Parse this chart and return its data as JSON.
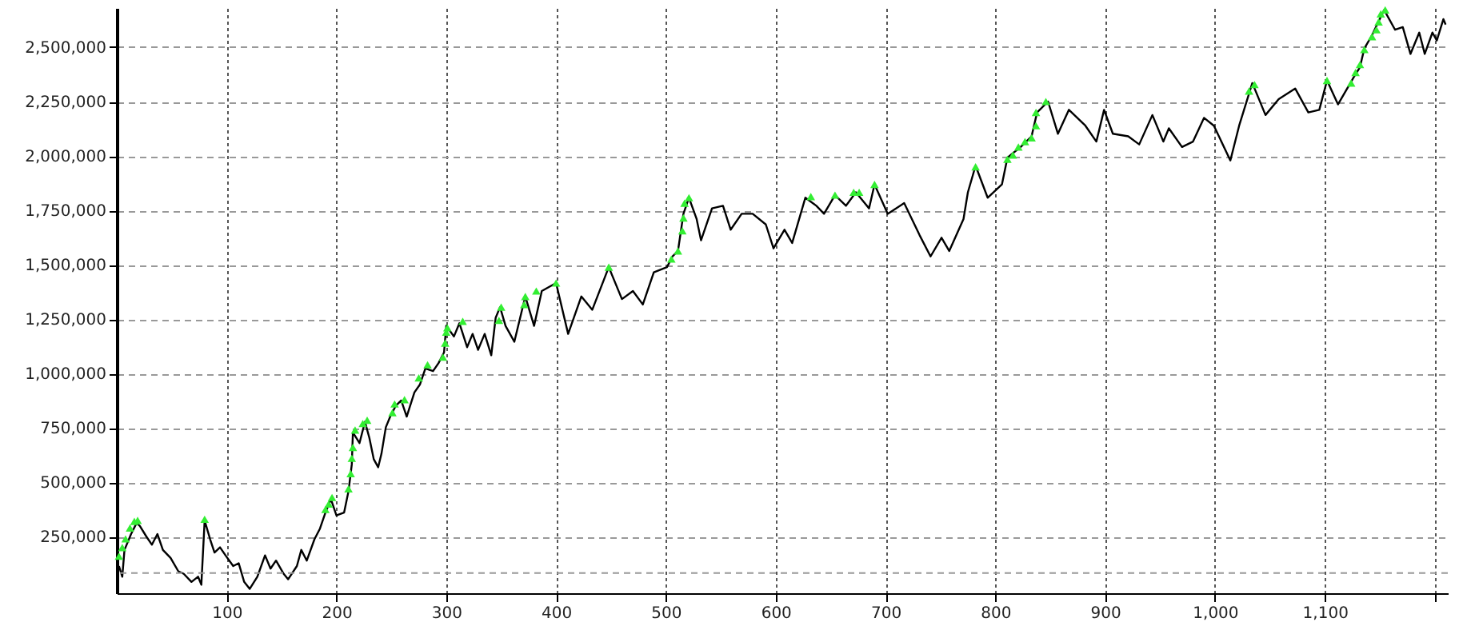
{
  "chart_data": {
    "type": "line",
    "xlim": [
      0,
      1212
    ],
    "ylim": [
      -10000,
      2680000
    ],
    "grid": true,
    "xticks": [
      100,
      200,
      300,
      400,
      500,
      600,
      700,
      800,
      900,
      {
        "value": 1000,
        "label": "1,000"
      },
      {
        "value": 1100,
        "label": "1,100"
      },
      {
        "value": 1200,
        "label": null
      }
    ],
    "ref_lines": [
      {
        "axis": "y",
        "value": 83000,
        "color": "#999999",
        "line_style": "dashed"
      }
    ],
    "yticks": [
      {
        "value": 250000,
        "label": "250,000"
      },
      {
        "value": 500000,
        "label": "500,000"
      },
      {
        "value": 750000,
        "label": "750,000"
      },
      {
        "value": 1000000,
        "label": "1,000,000"
      },
      {
        "value": 1250000,
        "label": "1,250,000"
      },
      {
        "value": 1500000,
        "label": "1,500,000"
      },
      {
        "value": 1750000,
        "label": "1,750,000"
      },
      {
        "value": 2000000,
        "label": "2,000,000"
      },
      {
        "value": 2250000,
        "label": "2,250,000"
      },
      {
        "value": 2500000,
        "label": "2,500,000"
      }
    ],
    "series": [
      {
        "type": "line",
        "color": "#000000",
        "marker": "none",
        "x": [
          2,
          5,
          7,
          13,
          18,
          21,
          27,
          32,
          37,
          42,
          49,
          56,
          61,
          68,
          74,
          77,
          80,
          85,
          89,
          94,
          99,
          106,
          111,
          116,
          121,
          128,
          135,
          140,
          145,
          152,
          156,
          164,
          168,
          173,
          180,
          185,
          190,
          195,
          200,
          207,
          211,
          214,
          215,
          221,
          226,
          230,
          234,
          238,
          241,
          245,
          249,
          254,
          259,
          264,
          271,
          276,
          281,
          288,
          293,
          298,
          300,
          307,
          312,
          319,
          324,
          329,
          335,
          341,
          345,
          349,
          354,
          362,
          372,
          380,
          387,
          400,
          411,
          423,
          433,
          448,
          460,
          470,
          479,
          489,
          501,
          506,
          511,
          516,
          521,
          528,
          532,
          542,
          552,
          559,
          569,
          579,
          591,
          598,
          608,
          615,
          627,
          637,
          644,
          654,
          664,
          673,
          685,
          690,
          702,
          717,
          731,
          741,
          751,
          758,
          771,
          775,
          782,
          793,
          806,
          811,
          823,
          833,
          838,
          848,
          857,
          867,
          882,
          892,
          899,
          907,
          921,
          931,
          943,
          953,
          958,
          970,
          980,
          990,
          999,
          1014,
          1022,
          1034,
          1046,
          1058,
          1073,
          1085,
          1095,
          1102,
          1112,
          1126,
          1132,
          1136,
          1143,
          1154,
          1164,
          1171,
          1178,
          1186,
          1191,
          1198,
          1202,
          1208,
          1210
        ],
        "values": [
          115000,
          66000,
          189000,
          262000,
          312000,
          299000,
          250000,
          213000,
          262000,
          189000,
          152000,
          91000,
          79000,
          42000,
          66000,
          29000,
          324000,
          238000,
          177000,
          201000,
          164000,
          115000,
          128000,
          42000,
          10000,
          66000,
          164000,
          103000,
          140000,
          79000,
          54000,
          115000,
          189000,
          140000,
          238000,
          287000,
          361000,
          422000,
          348000,
          361000,
          459000,
          582000,
          729000,
          680000,
          778000,
          704000,
          606000,
          569000,
          631000,
          753000,
          802000,
          851000,
          876000,
          802000,
          913000,
          949000,
          1023000,
          1011000,
          1048000,
          1097000,
          1219000,
          1170000,
          1231000,
          1121000,
          1182000,
          1109000,
          1182000,
          1084000,
          1256000,
          1305000,
          1219000,
          1146000,
          1354000,
          1219000,
          1379000,
          1416000,
          1182000,
          1354000,
          1293000,
          1489000,
          1342000,
          1379000,
          1317000,
          1465000,
          1489000,
          1538000,
          1563000,
          1734000,
          1808000,
          1710000,
          1612000,
          1759000,
          1771000,
          1661000,
          1734000,
          1734000,
          1685000,
          1575000,
          1661000,
          1600000,
          1808000,
          1771000,
          1734000,
          1820000,
          1771000,
          1833000,
          1759000,
          1869000,
          1734000,
          1783000,
          1636000,
          1538000,
          1624000,
          1563000,
          1710000,
          1833000,
          1955000,
          1808000,
          1869000,
          1992000,
          2041000,
          2090000,
          2200000,
          2250000,
          2102000,
          2212000,
          2139000,
          2066000,
          2212000,
          2102000,
          2090000,
          2053000,
          2188000,
          2066000,
          2127000,
          2041000,
          2066000,
          2175000,
          2139000,
          1979000,
          2139000,
          2335000,
          2188000,
          2261000,
          2310000,
          2200000,
          2212000,
          2347000,
          2237000,
          2359000,
          2408000,
          2494000,
          2555000,
          2671000,
          2580000,
          2592000,
          2469000,
          2567000,
          2469000,
          2567000,
          2531000,
          2629000,
          2604000
        ]
      },
      {
        "type": "scatter",
        "color": "#33ee33",
        "marker": "triangle",
        "x": [
          2,
          5,
          8,
          12,
          16,
          19,
          80,
          190,
          193,
          196,
          211,
          213,
          214,
          215,
          217,
          224,
          228,
          251,
          253,
          262,
          275,
          283,
          297,
          299,
          300,
          301,
          315,
          348,
          350,
          371,
          372,
          382,
          400,
          448,
          505,
          511,
          515,
          516,
          517,
          521,
          632,
          654,
          671,
          676,
          690,
          782,
          811,
          816,
          821,
          827,
          833,
          837,
          837,
          846,
          1031,
          1036,
          1102,
          1124,
          1128,
          1132,
          1136,
          1143,
          1147,
          1149,
          1151,
          1155
        ],
        "values": [
          160000,
          200000,
          240000,
          290000,
          320000,
          325000,
          330000,
          375000,
          400000,
          430000,
          470000,
          540000,
          610000,
          660000,
          740000,
          770000,
          785000,
          820000,
          860000,
          880000,
          980000,
          1040000,
          1075000,
          1140000,
          1190000,
          1210000,
          1240000,
          1244000,
          1305000,
          1317000,
          1354000,
          1379000,
          1416000,
          1489000,
          1526000,
          1563000,
          1656000,
          1715000,
          1783000,
          1808000,
          1813000,
          1820000,
          1833000,
          1833000,
          1869000,
          1950000,
          1985000,
          2004000,
          2041000,
          2066000,
          2083000,
          2139000,
          2200000,
          2250000,
          2298000,
          2328000,
          2347000,
          2335000,
          2384000,
          2420000,
          2489000,
          2548000,
          2580000,
          2616000,
          2653000,
          2671000
        ]
      }
    ]
  }
}
